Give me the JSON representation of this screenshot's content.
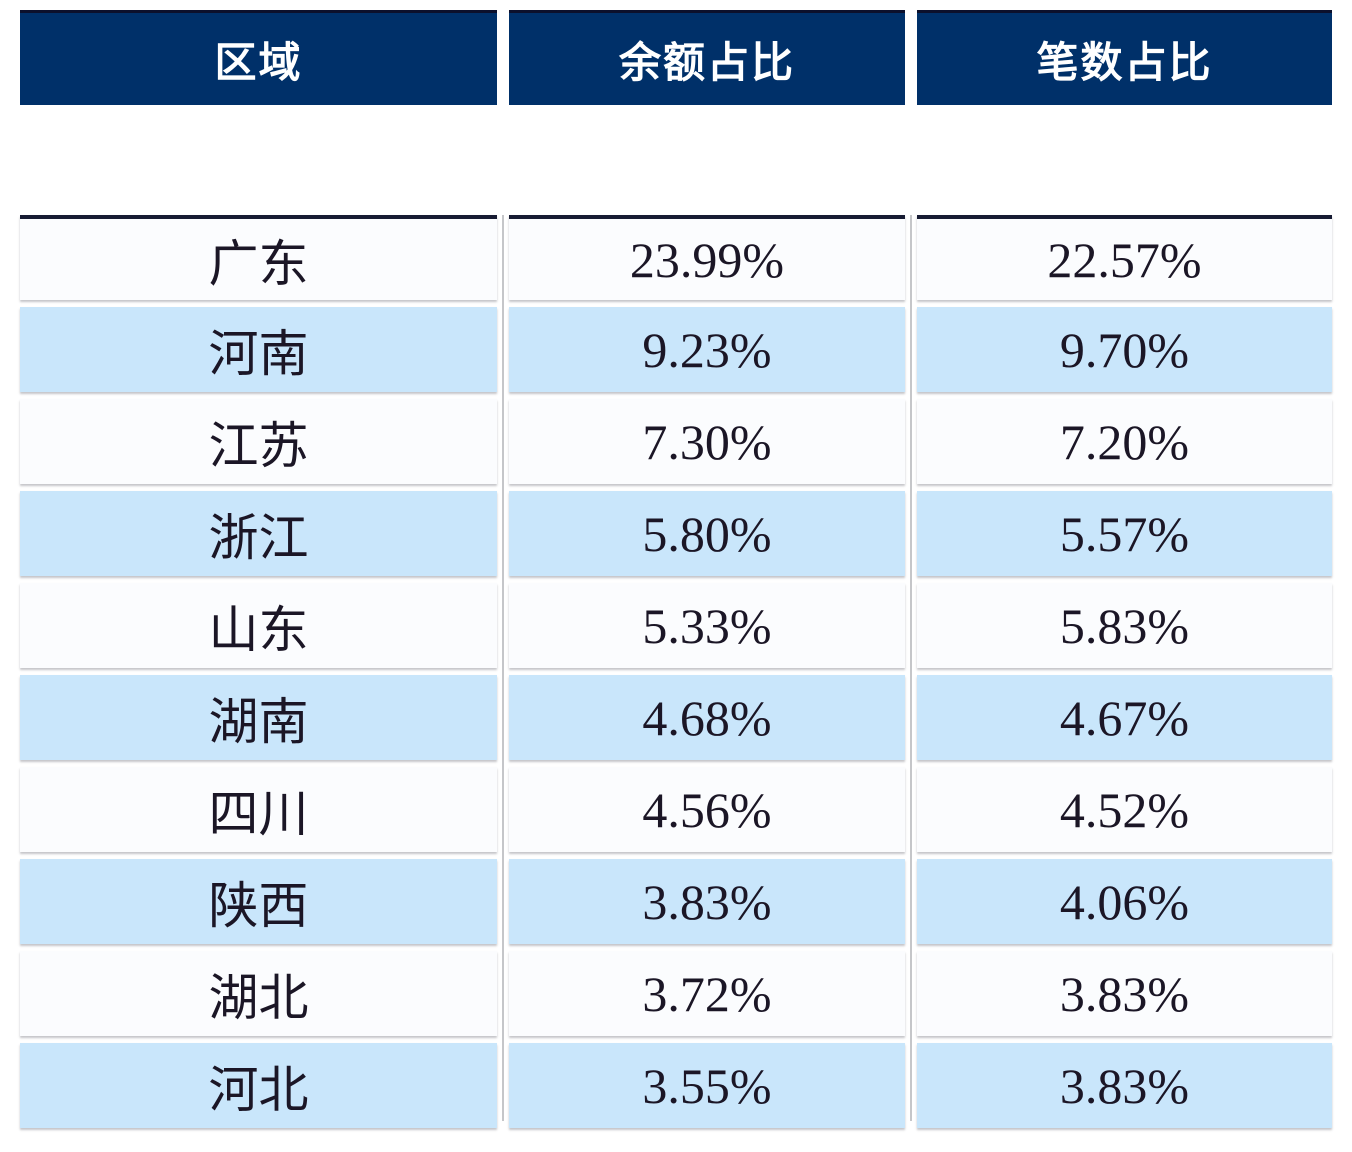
{
  "header": {
    "region": "区域",
    "balance": "余额占比",
    "count": "笔数占比"
  },
  "chart_data": {
    "type": "table",
    "columns": [
      "区域",
      "余额占比",
      "笔数占比"
    ],
    "rows": [
      [
        "广东",
        "23.99%",
        "22.57%"
      ],
      [
        "河南",
        "9.23%",
        "9.70%"
      ],
      [
        "江苏",
        "7.30%",
        "7.20%"
      ],
      [
        "浙江",
        "5.80%",
        "5.57%"
      ],
      [
        "山东",
        "5.33%",
        "5.83%"
      ],
      [
        "湖南",
        "4.68%",
        "4.67%"
      ],
      [
        "四川",
        "4.56%",
        "4.52%"
      ],
      [
        "陕西",
        "3.83%",
        "4.06%"
      ],
      [
        "湖北",
        "3.72%",
        "3.83%"
      ],
      [
        "河北",
        "3.55%",
        "3.83%"
      ]
    ],
    "title": "",
    "layout": {
      "striped": true,
      "stripe_color": "#c9e6fb",
      "base_row_color": "#fbfcfe",
      "header_bg": "#003069",
      "header_text_color": "#ffffff"
    }
  },
  "colors": {
    "header_bg": "#003069",
    "header_top_border": "#0c102c",
    "row_alt_bg": "#c9e6fb",
    "row_bg": "#fbfcfe",
    "data_text": "#1b1626",
    "column_divider": "#c5c6c9",
    "body_top_rule": "#171b33"
  }
}
